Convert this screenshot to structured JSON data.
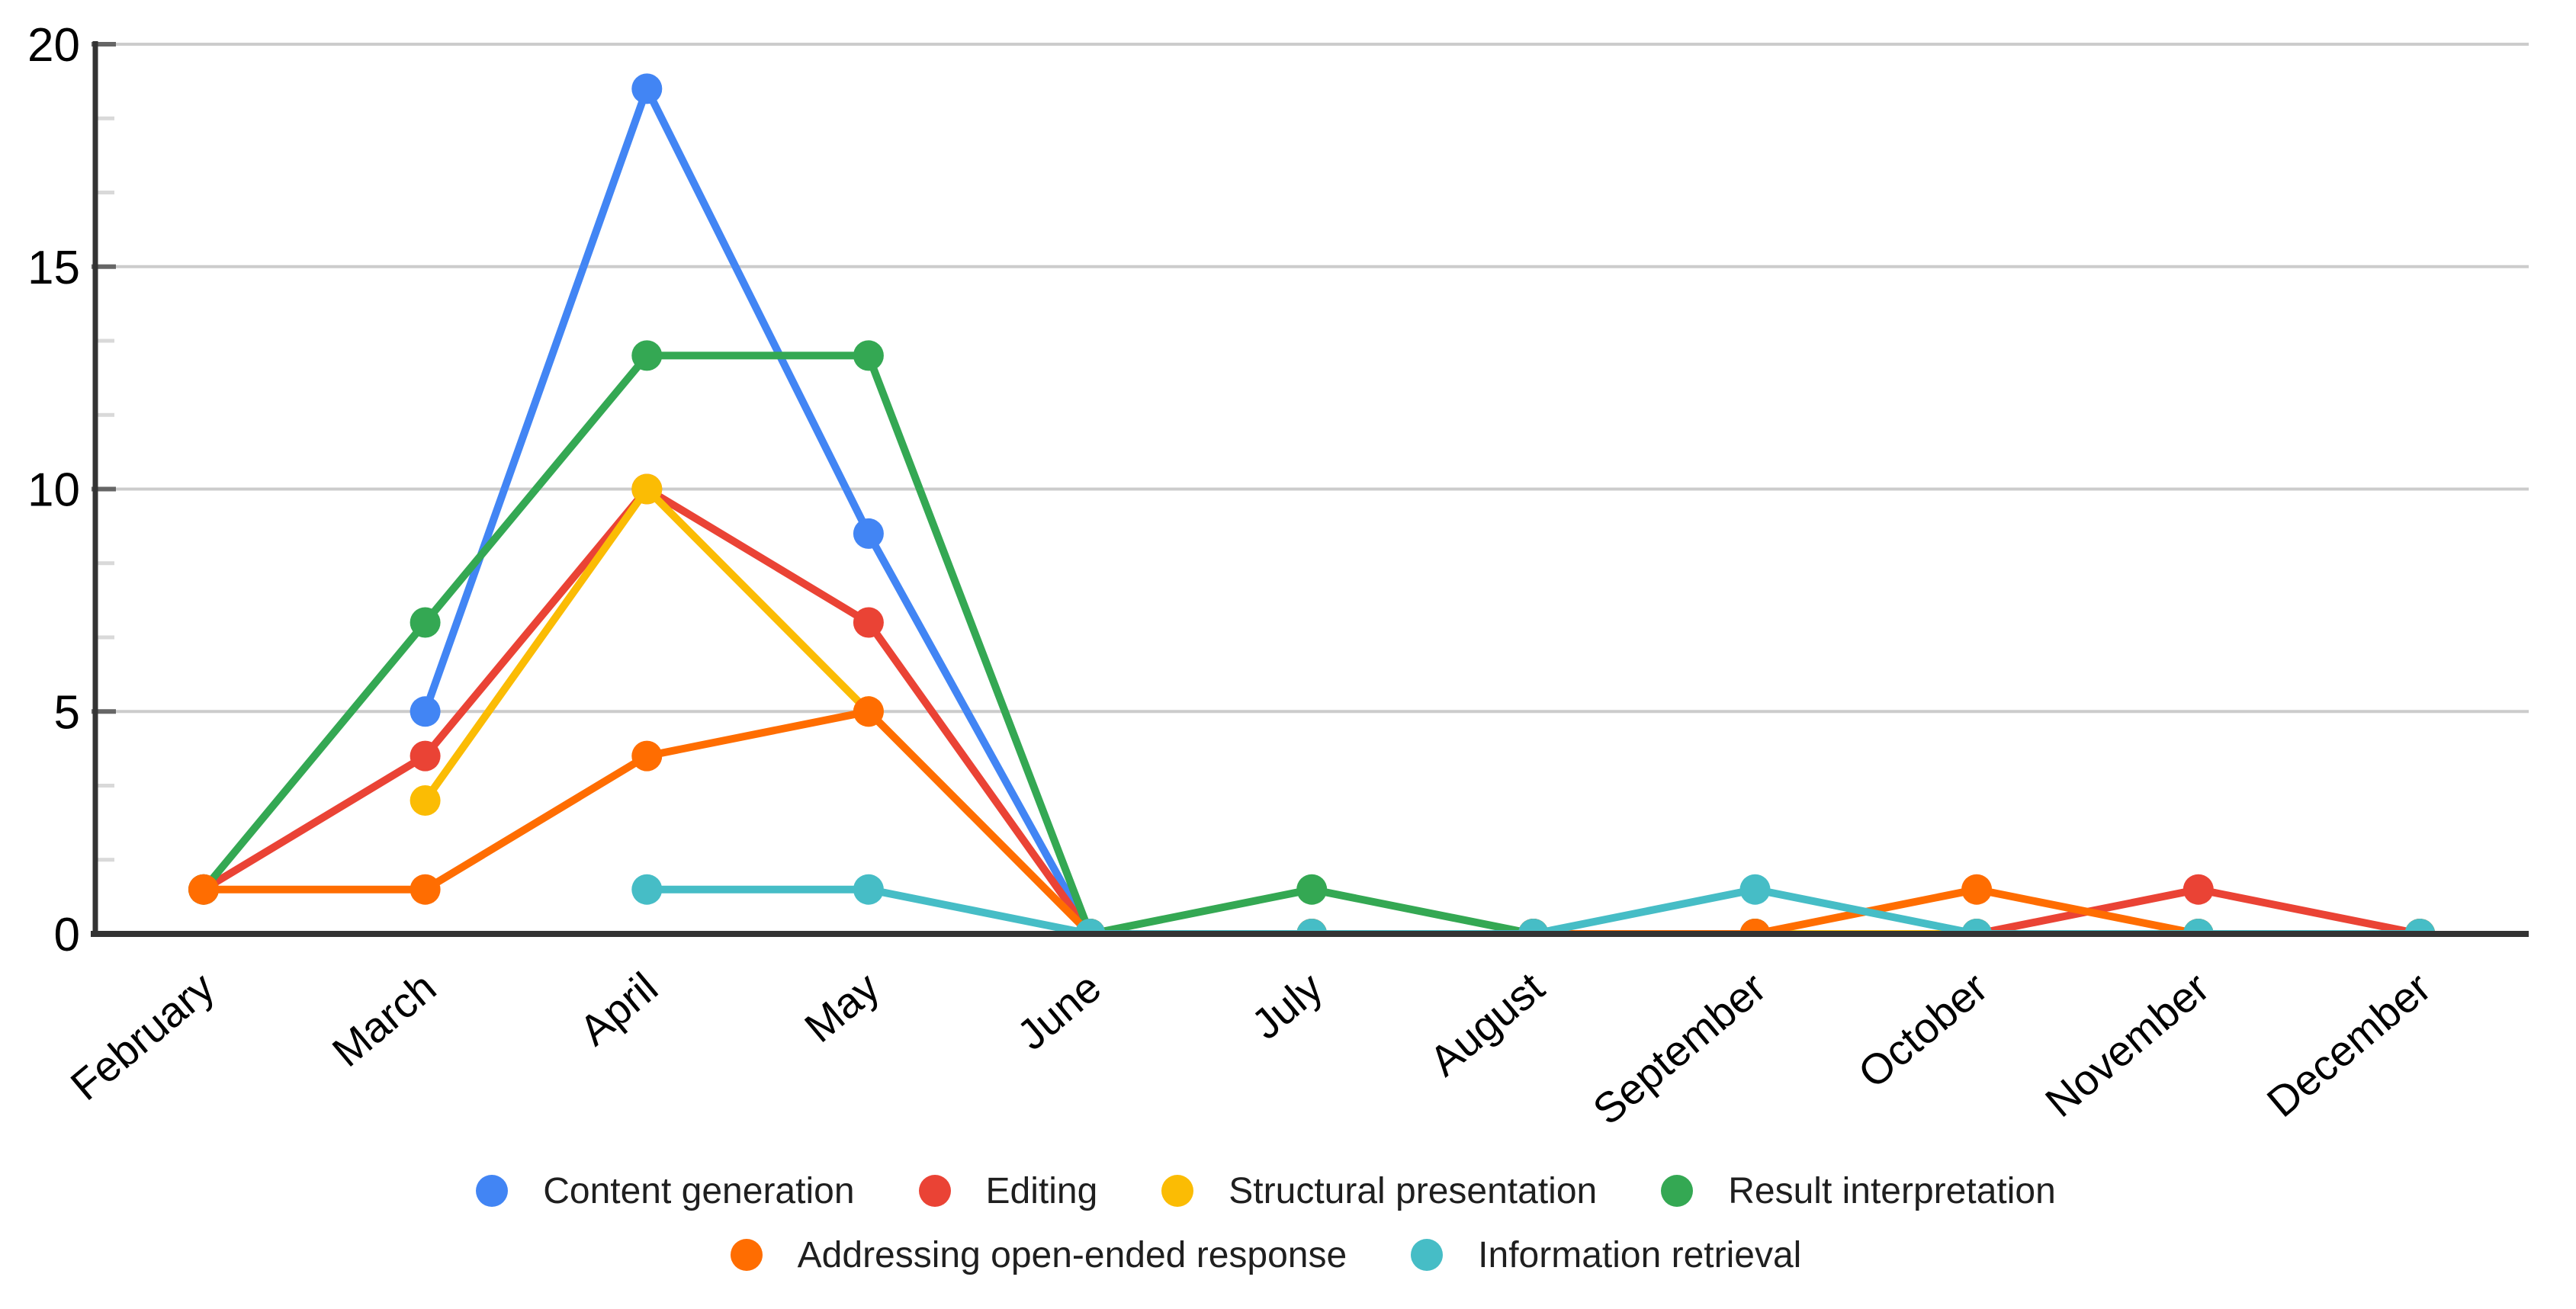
{
  "chart_data": {
    "type": "line",
    "title": "",
    "xlabel": "",
    "ylabel": "",
    "categories": [
      "February",
      "March",
      "April",
      "May",
      "June",
      "July",
      "August",
      "September",
      "October",
      "November",
      "December"
    ],
    "series": [
      {
        "name": "Content generation",
        "color": "#4285F4",
        "values": [
          null,
          5,
          19,
          9,
          0,
          0,
          0,
          0,
          0,
          0,
          0
        ]
      },
      {
        "name": "Editing",
        "color": "#EA4335",
        "values": [
          1,
          4,
          10,
          7,
          0,
          0,
          0,
          0,
          0,
          1,
          0
        ]
      },
      {
        "name": "Structural presentation",
        "color": "#FBBC04",
        "values": [
          null,
          3,
          10,
          5,
          0,
          0,
          0,
          0,
          0,
          0,
          0
        ]
      },
      {
        "name": "Result interpretation",
        "color": "#34A853",
        "values": [
          1,
          7,
          13,
          13,
          0,
          1,
          0,
          0,
          null,
          null,
          null
        ]
      },
      {
        "name": "Addressing open-ended response",
        "color": "#FF6D01",
        "values": [
          1,
          1,
          4,
          5,
          0,
          0,
          0,
          0,
          1,
          0,
          0
        ]
      },
      {
        "name": "Information retrieval",
        "color": "#46BDC6",
        "values": [
          null,
          null,
          1,
          1,
          0,
          0,
          0,
          1,
          0,
          0,
          0
        ]
      }
    ],
    "ylim": [
      0,
      20
    ],
    "yticks": [
      0,
      5,
      10,
      15,
      20
    ],
    "minor_ticks_between_majors": 2,
    "grid": true,
    "legend_position": "bottom",
    "legend_rows": [
      [
        0,
        1,
        2,
        3
      ],
      [
        4,
        5
      ]
    ],
    "style_colors": {
      "gridline": "#cccccc",
      "axis": "#333333",
      "major_tick": "#666666",
      "minor_tick": "#d9d9d9",
      "axis_label": "#000000",
      "legend_text": "#1f1f1f",
      "background": "#ffffff"
    }
  }
}
